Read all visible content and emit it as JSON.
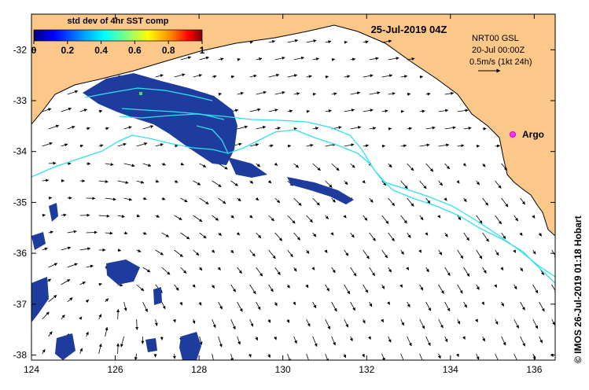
{
  "map": {
    "title": "25-Jul-2019 04Z",
    "colorbar": {
      "label": "std dev of 4hr SST comp",
      "ticks": [
        "0",
        "0.2",
        "0.4",
        "0.6",
        "0.8",
        "1"
      ],
      "colors": [
        "#000080",
        "#0000ff",
        "#00a0ff",
        "#00ffff",
        "#80ff80",
        "#ffff00",
        "#ff8000",
        "#ff0000",
        "#800000"
      ]
    },
    "info": {
      "line1": "NRT00 GSL",
      "line2": "20-Jul 00:00Z",
      "line3": "0.5m/s (1kt 24h)"
    },
    "marker_label": "Argo",
    "credit": "© IMOS 26-Jul-2019 01:18 Hobart",
    "x_ticks": [
      "124",
      "126",
      "128",
      "130",
      "132",
      "134",
      "136"
    ],
    "y_ticks": [
      "-32",
      "-33",
      "-34",
      "-35",
      "-36",
      "-37",
      "-38"
    ],
    "colors": {
      "land": "#fcc88a",
      "ocean": "#ffffff",
      "sst_patch": "#1e3c9e",
      "contour": "#30e0f0",
      "argo": "#ff33ff"
    }
  }
}
